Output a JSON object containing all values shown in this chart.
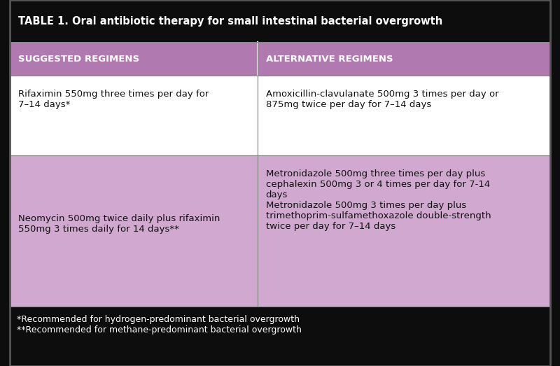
{
  "title": "TABLE 1. Oral antibiotic therapy for small intestinal bacterial overgrowth",
  "title_bg": "#0d0d0d",
  "title_color": "#ffffff",
  "header_bg": "#b07ab0",
  "header_color": "#ffffff",
  "col1_header": "SUGGESTED REGIMENS",
  "col2_header": "ALTERNATIVE REGIMENS",
  "row1_col1_bg": "#ffffff",
  "row1_col2_bg": "#ffffff",
  "row2_col1_bg": "#d0a8d0",
  "row2_col2_bg": "#d0a8d0",
  "row1_col1_text": "Rifaximin 550mg three times per day for\n7–14 days*",
  "row1_col2_text": "Amoxicillin-clavulanate 500mg 3 times per day or\n875mg twice per day for 7–14 days",
  "row2_col1_text": "Neomycin 500mg twice daily plus rifaximin\n550mg 3 times daily for 14 days**",
  "row2_col2_text": "Metronidazole 500mg three times per day plus\ncephalexin 500mg 3 or 4 times per day for 7-14\ndays\nMetronidazole 500mg 3 times per day plus\ntrimethoprim-sulfamethoxazole double-strength\ntwice per day for 7–14 days",
  "footnote1": "*Recommended for hydrogen-predominant bacterial overgrowth",
  "footnote2": "**Recommended for methane-predominant bacterial overgrowth",
  "footer_bg": "#0d0d0d",
  "footer_color": "#ffffff",
  "border_color": "#aaaaaa",
  "text_color": "#111111",
  "col_split": 0.458,
  "fig_width": 8.0,
  "fig_height": 5.23,
  "dpi": 100
}
